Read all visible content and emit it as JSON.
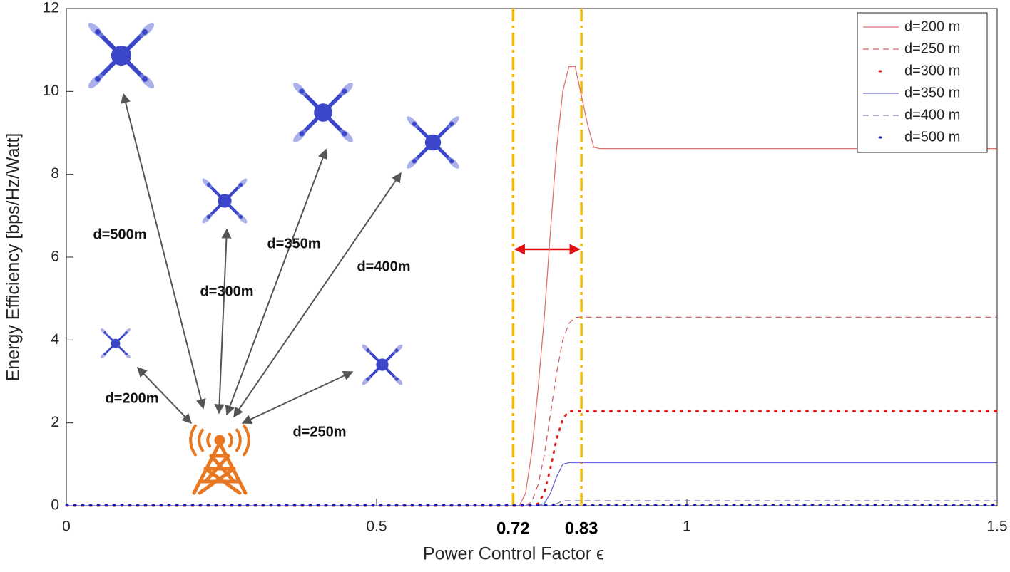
{
  "chart_data": {
    "type": "line",
    "xlabel": "Power Control Factor ϵ",
    "ylabel": "Energy Efficiency [bps/Hz/Watt]",
    "x": [
      0,
      0.72,
      0.73,
      0.74,
      0.75,
      0.76,
      0.77,
      0.78,
      0.79,
      0.8,
      0.81,
      0.82,
      0.83,
      0.84,
      0.85,
      0.86,
      1.5
    ],
    "series": [
      {
        "name": "d=200 m",
        "color": "#e07070",
        "style": "solid",
        "values": [
          0,
          0,
          0,
          0.3,
          1.3,
          2.8,
          4.5,
          6.6,
          8.6,
          10.0,
          10.6,
          10.6,
          9.9,
          9.2,
          8.65,
          8.62,
          8.62
        ]
      },
      {
        "name": "d=250 m",
        "color": "#d06060",
        "style": "dashed",
        "values": [
          0,
          0,
          0,
          0,
          0.1,
          0.5,
          1.2,
          2.2,
          3.2,
          4.0,
          4.4,
          4.55,
          4.55,
          4.55,
          4.55,
          4.55,
          4.55
        ]
      },
      {
        "name": "d=300 m",
        "color": "#e02020",
        "style": "dotted",
        "values": [
          0,
          0,
          0,
          0,
          0,
          0.05,
          0.3,
          0.9,
          1.6,
          2.1,
          2.28,
          2.28,
          2.28,
          2.28,
          2.28,
          2.28,
          2.28
        ]
      },
      {
        "name": "d=350 m",
        "color": "#6a6ad0",
        "style": "solid",
        "values": [
          0,
          0,
          0,
          0,
          0,
          0,
          0.05,
          0.3,
          0.7,
          1.0,
          1.04,
          1.04,
          1.04,
          1.04,
          1.04,
          1.04,
          1.04
        ]
      },
      {
        "name": "d=400 m",
        "color": "#7878b0",
        "style": "dashed",
        "values": [
          0,
          0,
          0,
          0,
          0,
          0,
          0,
          0,
          0.05,
          0.12,
          0.12,
          0.12,
          0.12,
          0.12,
          0.12,
          0.12,
          0.12
        ]
      },
      {
        "name": "d=500 m",
        "color": "#1a1ab0",
        "style": "dotted",
        "values": [
          0.01,
          0.01,
          0.01,
          0.01,
          0.01,
          0.01,
          0.01,
          0.01,
          0.01,
          0.01,
          0.01,
          0.01,
          0.01,
          0.01,
          0.01,
          0.01,
          0.01
        ]
      }
    ],
    "xlim": [
      0,
      1.5
    ],
    "xticks": [
      0,
      0.5,
      1,
      1.5
    ],
    "ylim": [
      0,
      12
    ],
    "yticks": [
      0,
      2,
      4,
      6,
      8,
      10,
      12
    ],
    "grid": false,
    "legend": "top-right",
    "vlines": [
      {
        "value": 0.72,
        "label": "0.72"
      },
      {
        "value": 0.83,
        "label": "0.83"
      }
    ],
    "vline_color": "#f5b800",
    "illustration_labels": [
      "d=500m",
      "d=300m",
      "d=350m",
      "d=400m",
      "d=200m",
      "d=250m"
    ]
  }
}
